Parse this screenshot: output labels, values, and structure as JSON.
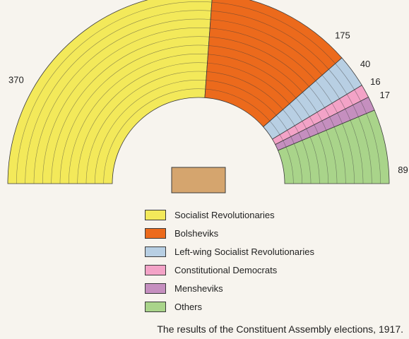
{
  "chart_data": {
    "type": "parliament-semicircle",
    "title": "The results of the Constituent Assembly elections, 1917.",
    "series": [
      {
        "name": "Socialist Revolutionaries",
        "value": 370,
        "color": "#f3e95a"
      },
      {
        "name": "Bolsheviks",
        "value": 175,
        "color": "#ec6a1c"
      },
      {
        "name": "Left-wing Socialist Revolutionaries",
        "value": 40,
        "color": "#b8cfe3"
      },
      {
        "name": "Constitutional Democrats",
        "value": 16,
        "color": "#f3a3c7"
      },
      {
        "name": "Mensheviks",
        "value": 17,
        "color": "#c58fbf"
      },
      {
        "name": "Others",
        "value": 89,
        "color": "#a9d48a"
      }
    ],
    "value_labels": [
      "370",
      "175",
      "40",
      "16",
      "17",
      "89"
    ],
    "legend_position": "bottom-center",
    "center_block_color": "#d5a56e"
  },
  "legend": {
    "items": [
      "Socialist Revolutionaries",
      "Bolsheviks",
      "Left-wing Socialist Revolutionaries",
      "Constitutional Democrats",
      "Mensheviks",
      "Others"
    ]
  },
  "caption": "The results of the Constituent Assembly elections, 1917."
}
